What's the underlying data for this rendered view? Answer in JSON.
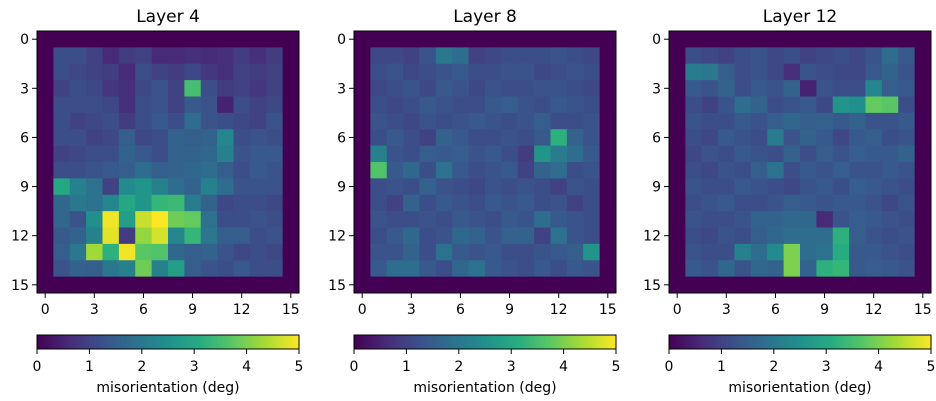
{
  "figure": {
    "colormap": "viridis",
    "colorbar_label": "misorientation (deg)",
    "colorbar_ticks": [
      "0",
      "1",
      "2",
      "3",
      "4",
      "5"
    ],
    "colorbar_range": [
      0,
      5
    ]
  },
  "chart_data": [
    {
      "type": "heatmap",
      "title": "Layer 4",
      "xlim": [
        -0.5,
        15.5
      ],
      "ylim": [
        15.5,
        -0.5
      ],
      "xticks": [
        "0",
        "3",
        "6",
        "9",
        "12",
        "15"
      ],
      "yticks": [
        "0",
        "3",
        "6",
        "9",
        "12",
        "15"
      ],
      "vmin": 0,
      "vmax": 5,
      "values": [
        [
          0.0,
          0.0,
          0.0,
          0.0,
          0.0,
          0.0,
          0.0,
          0.0,
          0.0,
          0.0,
          0.0,
          0.0,
          0.0,
          0.0,
          0.0,
          0.0
        ],
        [
          0.0,
          1.2,
          1.2,
          1.0,
          0.6,
          0.9,
          1.0,
          0.6,
          0.6,
          0.7,
          0.6,
          0.7,
          0.9,
          0.7,
          0.9,
          0.0
        ],
        [
          0.0,
          1.2,
          1.1,
          1.0,
          0.9,
          0.6,
          1.2,
          1.0,
          0.9,
          1.1,
          0.8,
          0.7,
          1.0,
          0.9,
          1.0,
          0.0
        ],
        [
          0.0,
          1.0,
          1.2,
          1.1,
          0.8,
          0.7,
          1.1,
          1.3,
          1.0,
          3.5,
          1.2,
          0.9,
          1.0,
          0.8,
          1.0,
          0.0
        ],
        [
          0.0,
          1.2,
          1.2,
          1.2,
          1.1,
          0.7,
          1.2,
          1.3,
          1.0,
          1.4,
          1.3,
          0.5,
          1.2,
          1.0,
          1.1,
          0.0
        ],
        [
          0.0,
          1.2,
          1.0,
          1.1,
          1.2,
          0.9,
          1.2,
          1.4,
          1.2,
          1.8,
          1.3,
          1.2,
          1.1,
          1.0,
          1.3,
          0.0
        ],
        [
          0.0,
          1.2,
          1.2,
          1.0,
          1.1,
          1.5,
          1.1,
          1.2,
          1.6,
          1.5,
          1.6,
          2.3,
          1.2,
          1.3,
          1.2,
          0.0
        ],
        [
          0.0,
          1.0,
          1.1,
          1.2,
          1.2,
          1.6,
          1.4,
          1.2,
          1.6,
          1.6,
          1.7,
          2.2,
          1.3,
          1.4,
          1.4,
          0.0
        ],
        [
          0.0,
          1.2,
          1.2,
          1.3,
          1.4,
          1.5,
          1.8,
          1.5,
          1.6,
          1.7,
          1.8,
          1.5,
          1.2,
          1.4,
          1.3,
          0.0
        ],
        [
          0.0,
          3.0,
          2.2,
          1.9,
          1.0,
          2.4,
          2.6,
          2.2,
          1.8,
          1.6,
          2.2,
          1.8,
          1.3,
          1.3,
          1.3,
          0.0
        ],
        [
          0.0,
          1.7,
          2.0,
          1.9,
          2.3,
          3.0,
          2.6,
          3.3,
          3.4,
          2.1,
          1.6,
          1.1,
          1.2,
          1.2,
          1.1,
          0.0
        ],
        [
          0.0,
          1.7,
          1.3,
          2.5,
          4.9,
          2.8,
          4.6,
          5.0,
          3.9,
          3.8,
          1.9,
          1.2,
          1.2,
          1.3,
          1.2,
          0.0
        ],
        [
          0.0,
          1.4,
          1.6,
          2.2,
          4.8,
          0.9,
          4.2,
          4.7,
          2.3,
          3.3,
          2.0,
          1.5,
          1.5,
          1.2,
          1.3,
          0.0
        ],
        [
          0.0,
          1.5,
          2.0,
          4.3,
          3.2,
          4.9,
          3.7,
          3.6,
          1.7,
          1.5,
          1.6,
          1.3,
          1.1,
          1.2,
          1.1,
          0.0
        ],
        [
          0.0,
          1.3,
          1.6,
          1.5,
          2.0,
          2.2,
          3.9,
          2.2,
          2.8,
          1.5,
          1.3,
          1.2,
          1.4,
          1.2,
          1.2,
          0.0
        ],
        [
          0.0,
          0.0,
          0.0,
          0.0,
          0.0,
          0.0,
          0.0,
          0.0,
          0.0,
          0.0,
          0.0,
          0.0,
          0.0,
          0.0,
          0.0,
          0.0
        ]
      ]
    },
    {
      "type": "heatmap",
      "title": "Layer 8",
      "xlim": [
        -0.5,
        15.5
      ],
      "ylim": [
        15.5,
        -0.5
      ],
      "xticks": [
        "0",
        "3",
        "6",
        "9",
        "12",
        "15"
      ],
      "yticks": [
        "0",
        "3",
        "6",
        "9",
        "12",
        "15"
      ],
      "vmin": 0,
      "vmax": 5,
      "values": [
        [
          0.0,
          0.0,
          0.0,
          0.0,
          0.0,
          0.0,
          0.0,
          0.0,
          0.0,
          0.0,
          0.0,
          0.0,
          0.0,
          0.0,
          0.0,
          0.0
        ],
        [
          0.0,
          1.1,
          1.1,
          1.0,
          1.3,
          2.0,
          1.8,
          1.0,
          1.1,
          1.2,
          1.2,
          1.2,
          1.3,
          1.2,
          1.1,
          0.0
        ],
        [
          0.0,
          1.2,
          1.3,
          1.1,
          1.2,
          1.3,
          1.4,
          1.2,
          1.2,
          1.3,
          1.3,
          1.1,
          1.2,
          1.3,
          1.2,
          0.0
        ],
        [
          0.0,
          1.1,
          1.2,
          1.3,
          1.1,
          1.4,
          1.3,
          1.1,
          1.3,
          1.2,
          1.2,
          1.3,
          1.3,
          1.2,
          1.1,
          0.0
        ],
        [
          0.0,
          1.2,
          1.1,
          1.2,
          1.4,
          1.3,
          1.2,
          1.2,
          1.4,
          1.5,
          1.3,
          1.2,
          1.4,
          1.3,
          1.2,
          0.0
        ],
        [
          0.0,
          1.3,
          1.2,
          1.1,
          1.3,
          1.2,
          1.3,
          1.4,
          1.3,
          1.2,
          1.3,
          1.5,
          1.2,
          1.2,
          1.3,
          0.0
        ],
        [
          0.0,
          1.2,
          1.4,
          1.2,
          1.0,
          1.6,
          1.4,
          1.2,
          1.2,
          1.3,
          1.2,
          1.4,
          3.2,
          1.6,
          1.3,
          0.0
        ],
        [
          0.0,
          2.2,
          1.3,
          1.2,
          1.5,
          1.4,
          1.5,
          1.3,
          1.4,
          1.2,
          0.9,
          2.6,
          2.1,
          1.8,
          1.4,
          0.0
        ],
        [
          0.0,
          3.6,
          1.4,
          1.7,
          1.2,
          1.9,
          1.4,
          1.2,
          1.3,
          1.4,
          1.0,
          1.6,
          1.8,
          1.2,
          1.3,
          0.0
        ],
        [
          0.0,
          1.2,
          1.3,
          1.2,
          1.6,
          1.3,
          1.2,
          1.1,
          1.3,
          1.2,
          1.3,
          1.2,
          1.0,
          1.3,
          1.2,
          0.0
        ],
        [
          0.0,
          1.2,
          1.0,
          1.6,
          1.2,
          1.4,
          1.3,
          1.2,
          1.4,
          1.3,
          1.4,
          1.2,
          1.3,
          1.0,
          1.2,
          0.0
        ],
        [
          0.0,
          1.3,
          1.2,
          1.2,
          1.3,
          1.2,
          1.4,
          1.3,
          1.2,
          1.4,
          1.3,
          1.8,
          1.4,
          1.3,
          1.2,
          0.0
        ],
        [
          0.0,
          1.2,
          1.4,
          1.7,
          1.2,
          1.3,
          1.7,
          1.6,
          1.3,
          1.6,
          1.6,
          1.0,
          1.9,
          1.3,
          1.2,
          0.0
        ],
        [
          0.0,
          1.3,
          1.3,
          1.6,
          1.2,
          1.9,
          1.4,
          1.3,
          1.4,
          1.2,
          1.2,
          1.3,
          1.4,
          1.5,
          2.6,
          0.0
        ],
        [
          0.0,
          1.4,
          1.8,
          1.8,
          1.4,
          1.2,
          1.7,
          1.9,
          1.4,
          1.3,
          1.2,
          1.4,
          1.2,
          1.4,
          1.3,
          0.0
        ],
        [
          0.0,
          0.0,
          0.0,
          0.0,
          0.0,
          0.0,
          0.0,
          0.0,
          0.0,
          0.0,
          0.0,
          0.0,
          0.0,
          0.0,
          0.0,
          0.0
        ]
      ]
    },
    {
      "type": "heatmap",
      "title": "Layer 12",
      "xlim": [
        -0.5,
        15.5
      ],
      "ylim": [
        15.5,
        -0.5
      ],
      "xticks": [
        "0",
        "3",
        "6",
        "9",
        "12",
        "15"
      ],
      "yticks": [
        "0",
        "3",
        "6",
        "9",
        "12",
        "15"
      ],
      "vmin": 0,
      "vmax": 5,
      "values": [
        [
          0.0,
          0.0,
          0.0,
          0.0,
          0.0,
          0.0,
          0.0,
          0.0,
          0.0,
          0.0,
          0.0,
          0.0,
          0.0,
          0.0,
          0.0,
          0.0
        ],
        [
          0.0,
          1.2,
          1.1,
          1.0,
          1.2,
          1.3,
          1.1,
          1.2,
          1.0,
          1.1,
          1.2,
          1.1,
          1.3,
          1.8,
          1.4,
          0.0
        ],
        [
          0.0,
          2.1,
          2.0,
          1.5,
          1.2,
          1.3,
          1.1,
          0.7,
          1.3,
          1.2,
          1.1,
          1.1,
          1.4,
          1.6,
          1.3,
          0.0
        ],
        [
          0.0,
          1.4,
          1.3,
          1.6,
          1.2,
          1.4,
          1.3,
          1.6,
          0.5,
          1.3,
          1.2,
          1.2,
          2.3,
          1.5,
          1.4,
          0.0
        ],
        [
          0.0,
          1.2,
          1.0,
          1.3,
          1.8,
          1.6,
          1.2,
          1.3,
          1.4,
          1.1,
          2.6,
          2.5,
          3.8,
          3.7,
          1.2,
          0.0
        ],
        [
          0.0,
          1.3,
          1.2,
          1.2,
          1.4,
          1.3,
          1.5,
          1.7,
          1.5,
          1.6,
          1.4,
          1.6,
          1.3,
          1.3,
          1.4,
          0.0
        ],
        [
          0.0,
          1.2,
          1.1,
          1.4,
          1.3,
          1.2,
          2.1,
          1.3,
          1.6,
          1.4,
          1.1,
          1.4,
          1.5,
          1.2,
          1.3,
          0.0
        ],
        [
          0.0,
          1.1,
          1.3,
          1.2,
          1.4,
          1.3,
          1.2,
          1.6,
          1.2,
          1.5,
          1.3,
          1.5,
          1.4,
          1.4,
          1.6,
          0.0
        ],
        [
          0.0,
          1.2,
          1.1,
          1.3,
          1.2,
          1.5,
          1.9,
          1.2,
          1.4,
          1.3,
          1.5,
          1.3,
          1.3,
          1.4,
          1.3,
          0.0
        ],
        [
          0.0,
          1.3,
          1.2,
          1.2,
          1.4,
          1.3,
          1.2,
          1.1,
          1.3,
          1.4,
          1.2,
          1.5,
          1.4,
          1.3,
          1.2,
          0.0
        ],
        [
          0.0,
          1.2,
          1.3,
          1.4,
          1.2,
          1.2,
          1.3,
          1.5,
          1.4,
          1.3,
          1.4,
          1.4,
          1.3,
          1.1,
          1.3,
          0.0
        ],
        [
          0.0,
          1.3,
          1.2,
          1.2,
          1.3,
          1.6,
          1.6,
          1.7,
          1.7,
          0.6,
          1.3,
          1.5,
          1.4,
          1.3,
          1.2,
          0.0
        ],
        [
          0.0,
          1.2,
          1.1,
          1.3,
          1.2,
          1.5,
          1.7,
          1.8,
          1.8,
          1.8,
          3.2,
          1.5,
          1.3,
          1.2,
          1.3,
          0.0
        ],
        [
          0.0,
          1.3,
          1.2,
          1.2,
          2.2,
          1.8,
          2.4,
          4.0,
          1.8,
          1.9,
          3.1,
          1.4,
          1.4,
          1.3,
          1.2,
          0.0
        ],
        [
          0.0,
          1.4,
          1.3,
          1.7,
          1.3,
          1.7,
          1.6,
          4.0,
          1.6,
          3.2,
          3.3,
          1.4,
          1.5,
          1.4,
          1.3,
          0.0
        ],
        [
          0.0,
          0.0,
          0.0,
          0.0,
          0.0,
          0.0,
          0.0,
          0.0,
          0.0,
          0.0,
          0.0,
          0.0,
          0.0,
          0.0,
          0.0,
          0.0
        ]
      ]
    }
  ]
}
